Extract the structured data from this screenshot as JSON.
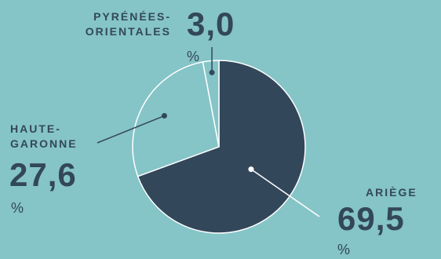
{
  "chart_data": {
    "type": "pie",
    "title": "",
    "slices": [
      {
        "label": "ARIÈGE",
        "value": 69.5,
        "value_text": "69,5",
        "unit": "%",
        "color": "#33475b"
      },
      {
        "label": "HAUTE-GARONNE",
        "value": 27.6,
        "value_text": "27,6",
        "unit": "%",
        "color": "#85c4c7"
      },
      {
        "label": "PYRÉNÉES-ORIENTALES",
        "value": 3.0,
        "value_text": "3,0",
        "unit": "%",
        "color": "#85c4c7"
      }
    ],
    "label_lines": {
      "ariege": "ARIÈGE",
      "haute_garonne_1": "HAUTE-",
      "haute_garonne_2": "GARONNE",
      "pyrenees_1": "PYRÉNÉES-",
      "pyrenees_2": "ORIENTALES"
    },
    "stroke_color": "#ffffff",
    "background_color": "#85c4c7",
    "text_color": "#33475b"
  }
}
